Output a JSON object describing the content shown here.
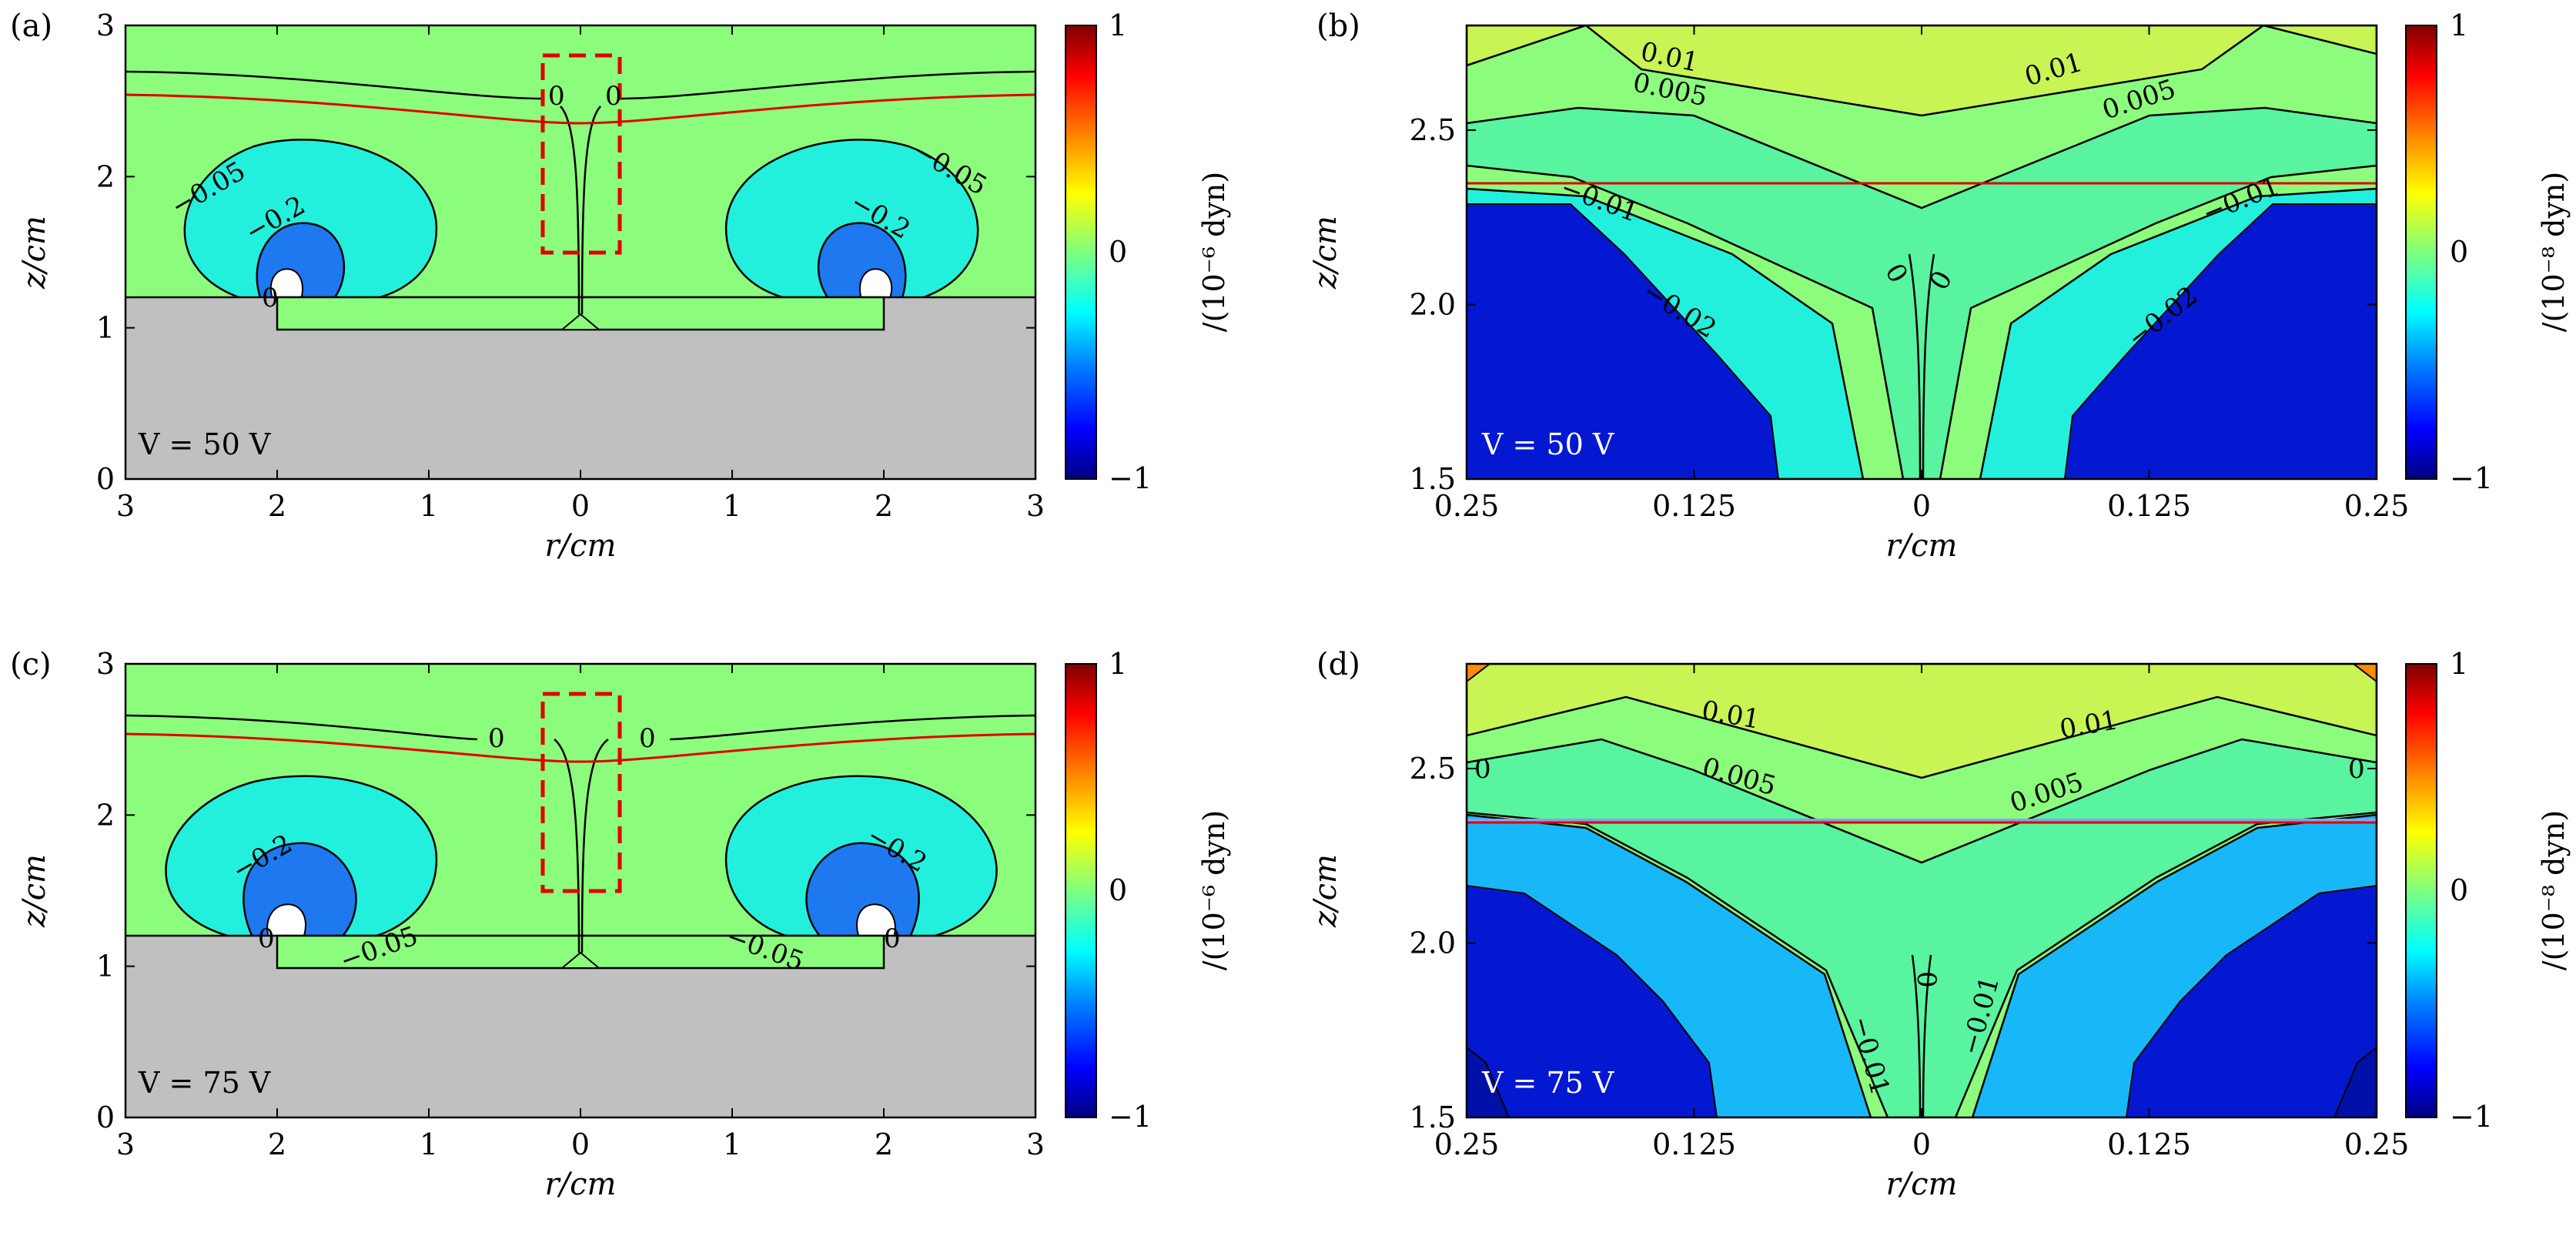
{
  "colors": {
    "background_field": "#8cfc7c",
    "light_cyan": "#22f0dc",
    "cyan": "#38f5c8",
    "mid_blue": "#1e78f0",
    "deep_blue": "#0418d2",
    "sky_blue": "#18b8f8",
    "navy": "#0010a8",
    "green_mid": "#58f4a0",
    "yellow_green": "#c8f454",
    "electrode_gray": "#c0c0c0",
    "contour": "#000000",
    "surface_line": "#e00000",
    "zoom_box": "#e00000"
  },
  "colorbar": {
    "max_label": "1",
    "zero_label": "0",
    "min_label": "−1",
    "stops": [
      "#7f0000",
      "#ff0000",
      "#ff8c00",
      "#ffff00",
      "#7fff7f",
      "#00ffff",
      "#0080ff",
      "#0000ff",
      "#00007f"
    ]
  },
  "chart_data": [
    {
      "panel": "(a)",
      "type": "contour",
      "xlabel": "r/cm",
      "ylabel": "z/cm",
      "x_ticks": [
        "3",
        "2",
        "1",
        "0",
        "1",
        "2",
        "3"
      ],
      "y_ticks": [
        "0",
        "1",
        "2",
        "3"
      ],
      "xlim": [
        -3,
        3
      ],
      "ylim": [
        0,
        3
      ],
      "colorbar_unit": "/(10⁻⁶ dyn)",
      "voltage_label": "V = 50 V",
      "contour_labels": [
        "0",
        "0",
        "−0.05",
        "−0.2",
        "−0.2",
        "−0.05",
        "0"
      ],
      "zoom_box": {
        "r": [
          -0.25,
          0.25
        ],
        "z": [
          1.5,
          2.8
        ]
      }
    },
    {
      "panel": "(b)",
      "type": "contour",
      "xlabel": "r/cm",
      "ylabel": "z/cm",
      "x_ticks": [
        "0.25",
        "0.125",
        "0",
        "0.125",
        "0.25"
      ],
      "y_ticks": [
        "1.5",
        "2.0",
        "2.5"
      ],
      "xlim": [
        -0.25,
        0.25
      ],
      "ylim": [
        1.5,
        2.8
      ],
      "colorbar_unit": "/(10⁻⁸ dyn)",
      "voltage_label": "V = 50 V",
      "contour_labels": [
        "0.01",
        "0.01",
        "0.005",
        "0.005",
        "−0.01",
        "−0.01",
        "−0.02",
        "−0.02",
        "0",
        "0"
      ]
    },
    {
      "panel": "(c)",
      "type": "contour",
      "xlabel": "r/cm",
      "ylabel": "z/cm",
      "x_ticks": [
        "3",
        "2",
        "1",
        "0",
        "1",
        "2",
        "3"
      ],
      "y_ticks": [
        "0",
        "1",
        "2",
        "3"
      ],
      "xlim": [
        -3,
        3
      ],
      "ylim": [
        0,
        3
      ],
      "colorbar_unit": "/(10⁻⁶ dyn)",
      "voltage_label": "V = 75 V",
      "contour_labels": [
        "0",
        "0",
        "−0.2",
        "−0.2",
        "−0.05",
        "−0.05",
        "0",
        "0"
      ],
      "zoom_box": {
        "r": [
          -0.25,
          0.25
        ],
        "z": [
          1.5,
          2.8
        ]
      }
    },
    {
      "panel": "(d)",
      "type": "contour",
      "xlabel": "r/cm",
      "ylabel": "z/cm",
      "x_ticks": [
        "0.25",
        "0.125",
        "0",
        "0.125",
        "0.25"
      ],
      "y_ticks": [
        "1.5",
        "2.0",
        "2.5"
      ],
      "xlim": [
        -0.25,
        0.25
      ],
      "ylim": [
        1.5,
        2.8
      ],
      "colorbar_unit": "/(10⁻⁸ dyn)",
      "voltage_label": "V = 75 V",
      "contour_labels": [
        "0.01",
        "0.01",
        "0.005",
        "0.005",
        "0",
        "0",
        "−0.01",
        "−0.01",
        "0"
      ]
    }
  ]
}
